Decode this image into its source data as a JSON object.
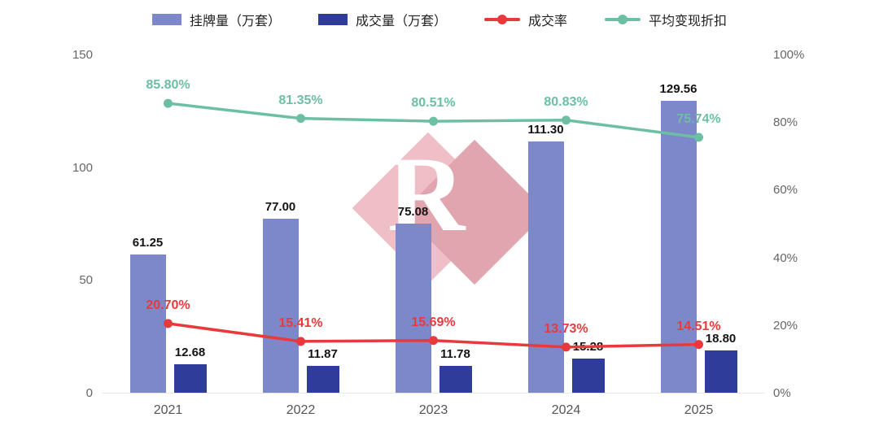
{
  "legend": [
    {
      "label": "挂牌量（万套）",
      "type": "bar",
      "color": "#7d88ca"
    },
    {
      "label": "成交量（万套）",
      "type": "bar",
      "color": "#2f3c99"
    },
    {
      "label": "成交率",
      "type": "line",
      "color": "#e83a3c"
    },
    {
      "label": "平均变现折扣",
      "type": "line",
      "color": "#6cbfa2"
    }
  ],
  "watermark": {
    "letter": "R"
  },
  "chart_data": {
    "type": "bar",
    "subtype": "combo-bar-line",
    "title": "",
    "legend_position": "top",
    "grid": false,
    "categories": [
      "2021",
      "2022",
      "2023",
      "2024",
      "2025"
    ],
    "series": [
      {
        "name": "挂牌量（万套）",
        "kind": "bar",
        "axis": "left",
        "color": "#7d88ca",
        "values": [
          61.25,
          77.0,
          75.08,
          111.3,
          129.56
        ],
        "labels": [
          "61.25",
          "77.00",
          "75.08",
          "111.30",
          "129.56"
        ]
      },
      {
        "name": "成交量（万套）",
        "kind": "bar",
        "axis": "left",
        "color": "#2f3c99",
        "values": [
          12.68,
          11.87,
          11.78,
          15.28,
          18.8
        ],
        "labels": [
          "12.68",
          "11.87",
          "11.78",
          "15.28",
          "18.80"
        ]
      },
      {
        "name": "成交率",
        "kind": "line",
        "axis": "right",
        "color": "#e83a3c",
        "values": [
          20.7,
          15.41,
          15.69,
          13.73,
          14.51
        ],
        "labels": [
          "20.70%",
          "15.41%",
          "15.69%",
          "13.73%",
          "14.51%"
        ]
      },
      {
        "name": "平均变现折扣",
        "kind": "line",
        "axis": "right",
        "color": "#6cbfa2",
        "values": [
          85.8,
          81.35,
          80.51,
          80.83,
          75.74
        ],
        "labels": [
          "85.80%",
          "81.35%",
          "80.51%",
          "80.83%",
          "75.74%"
        ]
      }
    ],
    "left_axis": {
      "min": 0,
      "max": 150,
      "values": [
        0,
        50,
        100,
        150
      ],
      "ticks": [
        "0",
        "50",
        "100",
        "150"
      ]
    },
    "right_axis": {
      "min": 0,
      "max": 100,
      "values": [
        0,
        20,
        40,
        60,
        80,
        100
      ],
      "ticks": [
        "0%",
        "20%",
        "40%",
        "60%",
        "80%",
        "100%"
      ]
    }
  }
}
